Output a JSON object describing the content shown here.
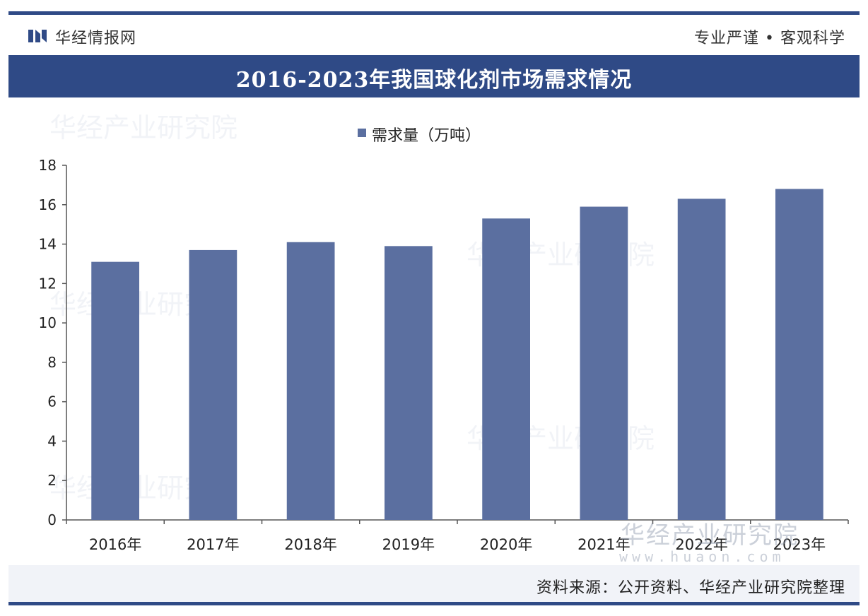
{
  "header": {
    "brand": "华经情报网",
    "slogan": "专业严谨 • 客观科学"
  },
  "title": "2016-2023年我国球化剂市场需求情况",
  "legend": {
    "label": "需求量（万吨）"
  },
  "source": "资料来源：公开资料、华经产业研究院整理",
  "watermarks": {
    "brand": "华经产业研究院",
    "url": "www.huaon.com"
  },
  "colors": {
    "bar": "#5b6fa0",
    "header": "#2f4a86"
  },
  "chart_data": {
    "type": "bar",
    "categories": [
      "2016年",
      "2017年",
      "2018年",
      "2019年",
      "2020年",
      "2021年",
      "2022年",
      "2023年"
    ],
    "series": [
      {
        "name": "需求量（万吨）",
        "values": [
          13.1,
          13.7,
          14.1,
          13.9,
          15.3,
          15.9,
          16.3,
          16.8
        ]
      }
    ],
    "ylim": [
      0,
      18
    ],
    "yticks": [
      0,
      2,
      4,
      6,
      8,
      10,
      12,
      14,
      16,
      18
    ],
    "legend_position": "top-center",
    "grid": false
  }
}
